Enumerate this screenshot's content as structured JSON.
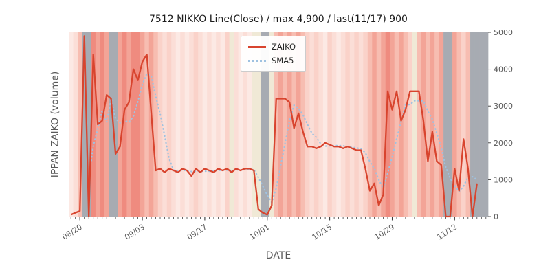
{
  "chart_data": {
    "type": "line",
    "title": "7512 NIKKO Line(Close) / max 4,900 / last(11/17) 900",
    "xlabel": "DATE",
    "ylabel": "IPPAN ZAIKO (volume)",
    "ylim": [
      0,
      5000
    ],
    "yticks": [
      0,
      1000,
      2000,
      3000,
      4000,
      5000
    ],
    "xtick_labels": [
      "08/20",
      "09/03",
      "09/17",
      "10/01",
      "10/15",
      "10/29",
      "11/12"
    ],
    "xtick_indices": [
      2,
      16,
      30,
      44,
      58,
      72,
      86
    ],
    "grid": false,
    "legend_position": "upper center",
    "x_dates": [
      "08/18",
      "08/19",
      "08/20",
      "08/21",
      "08/22",
      "08/23",
      "08/24",
      "08/25",
      "08/26",
      "08/27",
      "08/28",
      "08/29",
      "08/30",
      "08/31",
      "09/01",
      "09/02",
      "09/03",
      "09/04",
      "09/05",
      "09/06",
      "09/07",
      "09/08",
      "09/09",
      "09/10",
      "09/11",
      "09/12",
      "09/13",
      "09/14",
      "09/15",
      "09/16",
      "09/17",
      "09/18",
      "09/19",
      "09/20",
      "09/21",
      "09/22",
      "09/23",
      "09/24",
      "09/25",
      "09/26",
      "09/27",
      "09/28",
      "09/29",
      "09/30",
      "10/01",
      "10/02",
      "10/03",
      "10/04",
      "10/05",
      "10/06",
      "10/07",
      "10/08",
      "10/09",
      "10/10",
      "10/11",
      "10/12",
      "10/13",
      "10/14",
      "10/15",
      "10/16",
      "10/17",
      "10/18",
      "10/19",
      "10/20",
      "10/21",
      "10/22",
      "10/23",
      "10/24",
      "10/25",
      "10/26",
      "10/27",
      "10/28",
      "10/29",
      "10/30",
      "10/31",
      "11/01",
      "11/02",
      "11/03",
      "11/04",
      "11/05",
      "11/06",
      "11/07",
      "11/08",
      "11/09",
      "11/10",
      "11/11",
      "11/12",
      "11/13",
      "11/14",
      "11/15",
      "11/16",
      "11/17",
      "11/18",
      "11/19"
    ],
    "series": [
      {
        "name": "ZAIKO",
        "color": "#d8442e",
        "style": "solid",
        "values": [
          50,
          100,
          150,
          4900,
          0,
          4400,
          2500,
          2600,
          3300,
          3200,
          1700,
          1900,
          2900,
          3100,
          4000,
          3700,
          4200,
          4400,
          2800,
          1250,
          1300,
          1200,
          1300,
          1250,
          1200,
          1300,
          1250,
          1100,
          1300,
          1200,
          1300,
          1250,
          1200,
          1300,
          1250,
          1300,
          1200,
          1300,
          1250,
          1300,
          1300,
          1250,
          200,
          100,
          50,
          300,
          3200,
          3200,
          3200,
          3100,
          2400,
          2800,
          2300,
          1900,
          1900,
          1850,
          1900,
          2000,
          1950,
          1900,
          1900,
          1850,
          1900,
          1850,
          1800,
          1800,
          1300,
          700,
          900,
          300,
          600,
          3400,
          2900,
          3400,
          2600,
          2900,
          3400,
          3400,
          3400,
          2600,
          1500,
          2300,
          1500,
          1400,
          0,
          0,
          1300,
          700,
          2100,
          1300,
          0,
          900
        ]
      },
      {
        "name": "SMA5",
        "color": "#9fc2e1",
        "style": "dotted",
        "derived": "sma",
        "window": 5
      }
    ],
    "band_colors": [
      "#fce9e4",
      "#fbded7",
      "#f7bdb1",
      "#a7abb2",
      "#a7abb2",
      "#ef8b7f",
      "#f3a497",
      "#ef8b7f",
      "#f3a497",
      "#a7abb2",
      "#a7abb2",
      "#f3a497",
      "#ef8b7f",
      "#f3a497",
      "#ef8b7f",
      "#ef8b7f",
      "#f3a497",
      "#f7bdb1",
      "#f3a497",
      "#f7bdb1",
      "#fad2c9",
      "#fbded7",
      "#fad2c9",
      "#fbded7",
      "#fce9e4",
      "#fbded7",
      "#fce9e4",
      "#fbded7",
      "#fad2c9",
      "#fbded7",
      "#fce9e4",
      "#fbded7",
      "#fce9e4",
      "#fbded7",
      "#fce9e4",
      "#fad2c9",
      "#f0e9d6",
      "#fbded7",
      "#fce9e4",
      "#fbded7",
      "#fce9e4",
      "#f0e9d6",
      "#f0e9d6",
      "#a7abb2",
      "#a7abb2",
      "#f0e9d6",
      "#f7bdb1",
      "#f3a497",
      "#f7bdb1",
      "#f3a497",
      "#f7bdb1",
      "#f3a497",
      "#f7bdb1",
      "#fad2c9",
      "#fbded7",
      "#fad2c9",
      "#fbded7",
      "#fce9e4",
      "#fad2c9",
      "#fbded7",
      "#fce9e4",
      "#fbded7",
      "#fad2c9",
      "#fbded7",
      "#fad2c9",
      "#fbded7",
      "#fad2c9",
      "#f7bdb1",
      "#f3a497",
      "#f7bdb1",
      "#f3a497",
      "#ef8b7f",
      "#f3a497",
      "#f7bdb1",
      "#f3a497",
      "#f7bdb1",
      "#fad2c9",
      "#f0e9d6",
      "#f7bdb1",
      "#f3a497",
      "#f7bdb1",
      "#f3a497",
      "#f7bdb1",
      "#f3a497",
      "#a7abb2",
      "#a7abb2",
      "#f3a497",
      "#f7bdb1",
      "#fad2c9",
      "#f7bdb1",
      "#a7abb2",
      "#a7abb2",
      "#a7abb2",
      "#a7abb2"
    ]
  },
  "colors": {
    "tick_text": "#595959",
    "title_text": "#1c1c1c",
    "tick_mark": "#3c3c3c",
    "legend_border": "#cccccc"
  }
}
